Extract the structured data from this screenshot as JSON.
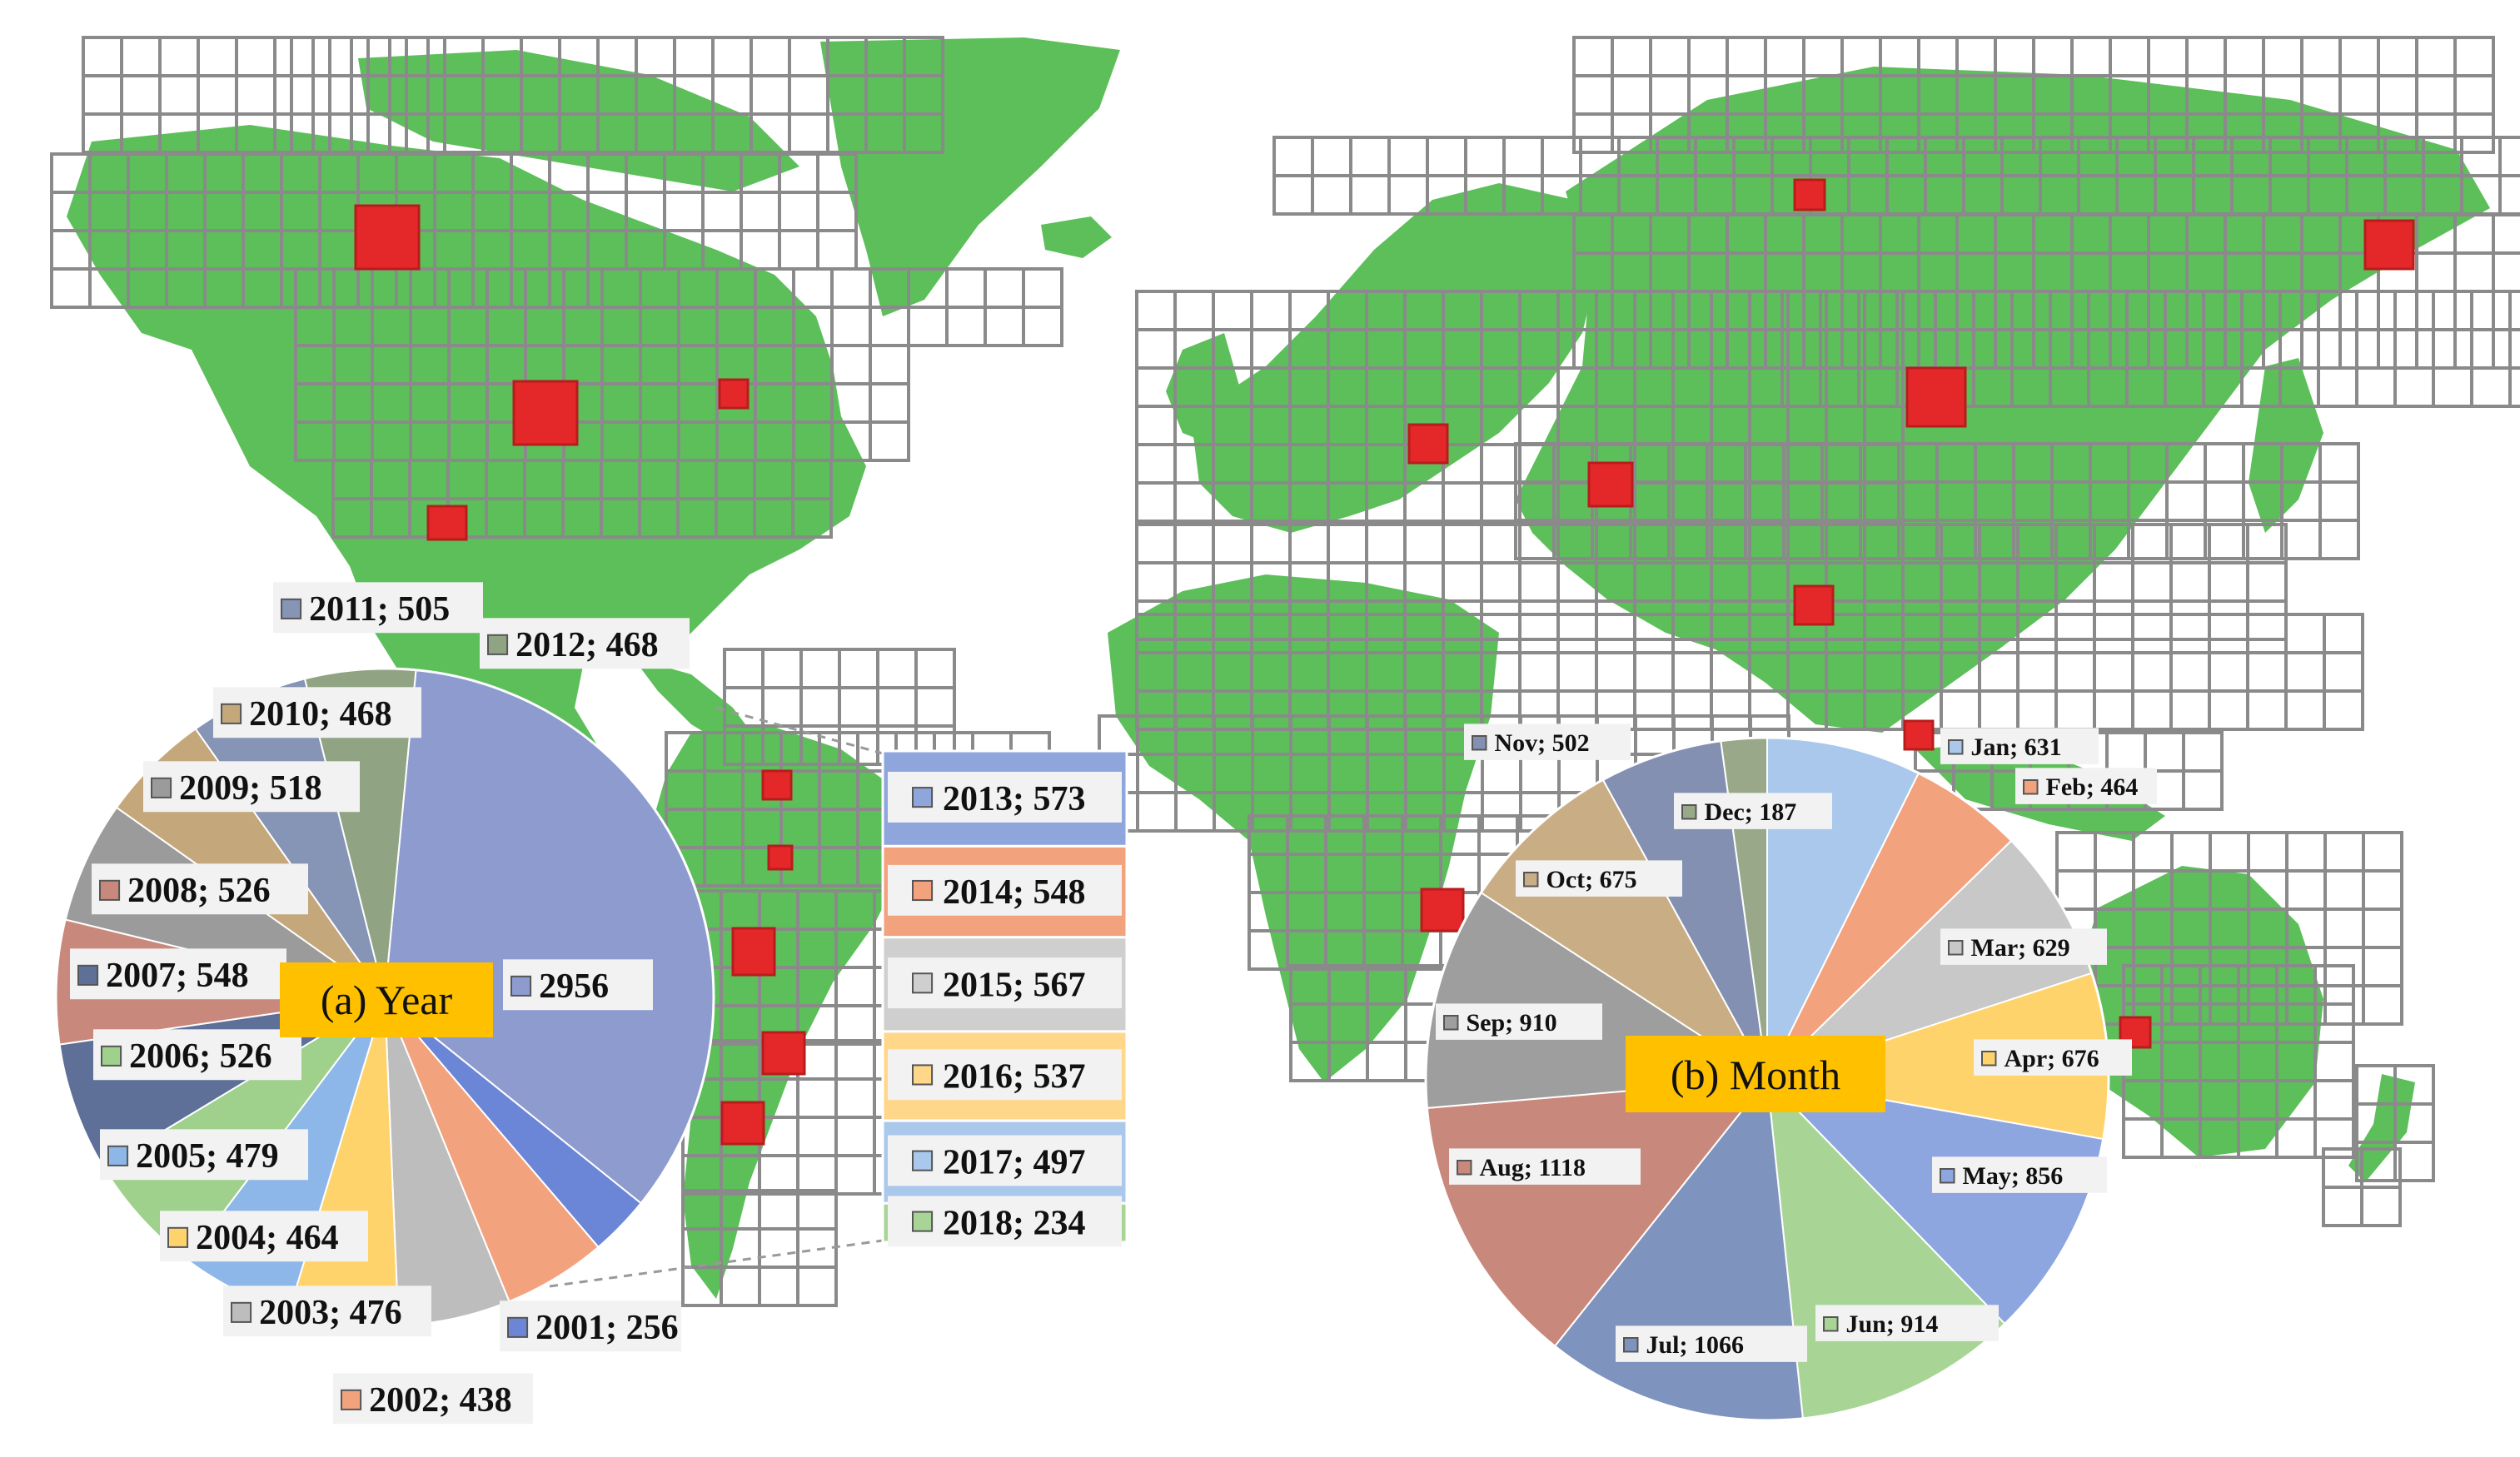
{
  "colors": {
    "land": "#5cbf5a",
    "grid": "#8a8a8a",
    "site": "#e4282a",
    "title_box": "#ffc000",
    "label_bg": "#f2f2f2"
  },
  "chart_data": [
    {
      "type": "pie",
      "title": "(a) Year",
      "slices": [
        {
          "label": "2956",
          "value": 2956,
          "color": "#8e9bcf"
        },
        {
          "label": "2001; 256",
          "value": 256,
          "color": "#6b86d6"
        },
        {
          "label": "2002; 438",
          "value": 438,
          "color": "#f3a27e"
        },
        {
          "label": "2003; 476",
          "value": 476,
          "color": "#bdbdbd"
        },
        {
          "label": "2004; 464",
          "value": 464,
          "color": "#ffd36b"
        },
        {
          "label": "2005; 479",
          "value": 479,
          "color": "#8db7e8"
        },
        {
          "label": "2006; 526",
          "value": 526,
          "color": "#9fd08c"
        },
        {
          "label": "2007; 548",
          "value": 548,
          "color": "#5e6f98"
        },
        {
          "label": "2008; 526",
          "value": 526,
          "color": "#c9887c"
        },
        {
          "label": "2009; 518",
          "value": 518,
          "color": "#9b9b9b"
        },
        {
          "label": "2010; 468",
          "value": 468,
          "color": "#c4a77a"
        },
        {
          "label": "2011; 505",
          "value": 505,
          "color": "#8694b5"
        },
        {
          "label": "2012; 468",
          "value": 468,
          "color": "#90a484"
        }
      ],
      "breakout": [
        {
          "label": "2013; 573",
          "value": 573,
          "color": "#8fa6dc"
        },
        {
          "label": "2014; 548",
          "value": 548,
          "color": "#f3a27e"
        },
        {
          "label": "2015; 567",
          "value": 567,
          "color": "#cfcfcf"
        },
        {
          "label": "2016; 537",
          "value": 537,
          "color": "#ffd78a"
        },
        {
          "label": "2017; 497",
          "value": 497,
          "color": "#a9c8ec"
        },
        {
          "label": "2018; 234",
          "value": 234,
          "color": "#a8d596"
        }
      ]
    },
    {
      "type": "pie",
      "title": "(b) Month",
      "slices": [
        {
          "label": "Jan; 631",
          "value": 631,
          "color": "#a9c8ec"
        },
        {
          "label": "Feb; 464",
          "value": 464,
          "color": "#f3a27e"
        },
        {
          "label": "Mar; 629",
          "value": 629,
          "color": "#c8c8c8"
        },
        {
          "label": "Apr; 676",
          "value": 676,
          "color": "#ffd36b"
        },
        {
          "label": "May; 856",
          "value": 856,
          "color": "#8ea6e0"
        },
        {
          "label": "Jun; 914",
          "value": 914,
          "color": "#a8d596"
        },
        {
          "label": "Jul; 1066",
          "value": 1066,
          "color": "#7f93bf"
        },
        {
          "label": "Aug; 1118",
          "value": 1118,
          "color": "#c9887c"
        },
        {
          "label": "Sep; 910",
          "value": 910,
          "color": "#9e9e9e"
        },
        {
          "label": "Oct; 675",
          "value": 675,
          "color": "#c9ad84"
        },
        {
          "label": "Nov; 502",
          "value": 502,
          "color": "#8390b2"
        },
        {
          "label": "Dec; 187",
          "value": 187,
          "color": "#98a888"
        }
      ]
    }
  ]
}
